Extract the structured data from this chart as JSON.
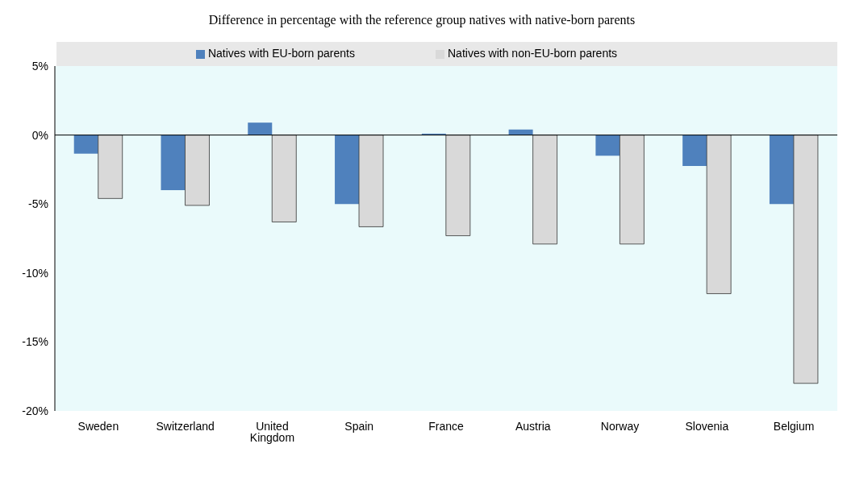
{
  "chart_data": {
    "type": "bar",
    "title": "Difference in percentage with the reference group natives with native-born parents",
    "categories": [
      "Sweden",
      "Switzerland",
      "United Kingdom",
      "Spain",
      "France",
      "Austria",
      "Norway",
      "Slovenia",
      "Belgium"
    ],
    "series": [
      {
        "name": "Natives with EU-born parents",
        "color": "#4f81bd",
        "values": [
          -1.35,
          -4.0,
          0.9,
          -5.0,
          0.1,
          0.4,
          -1.5,
          -2.25,
          -5.0
        ]
      },
      {
        "name": "Natives with non-EU-born parents",
        "color": "#d9d9d9",
        "values": [
          -4.6,
          -5.1,
          -6.3,
          -6.65,
          -7.3,
          -7.9,
          -7.9,
          -11.5,
          -18.0
        ]
      }
    ],
    "ylim": [
      -20,
      5
    ],
    "yticks": [
      {
        "value": -20,
        "label": "-20%"
      },
      {
        "value": -15,
        "label": "-15%"
      },
      {
        "value": -10,
        "label": "-10%"
      },
      {
        "value": -5,
        "label": "-5%"
      },
      {
        "value": 0,
        "label": "0%"
      },
      {
        "value": 5,
        "label": "5%"
      }
    ],
    "grid": false,
    "ref_lines": [
      {
        "axis": "y",
        "value": 0,
        "color": "#000000"
      }
    ],
    "legend": "top"
  }
}
